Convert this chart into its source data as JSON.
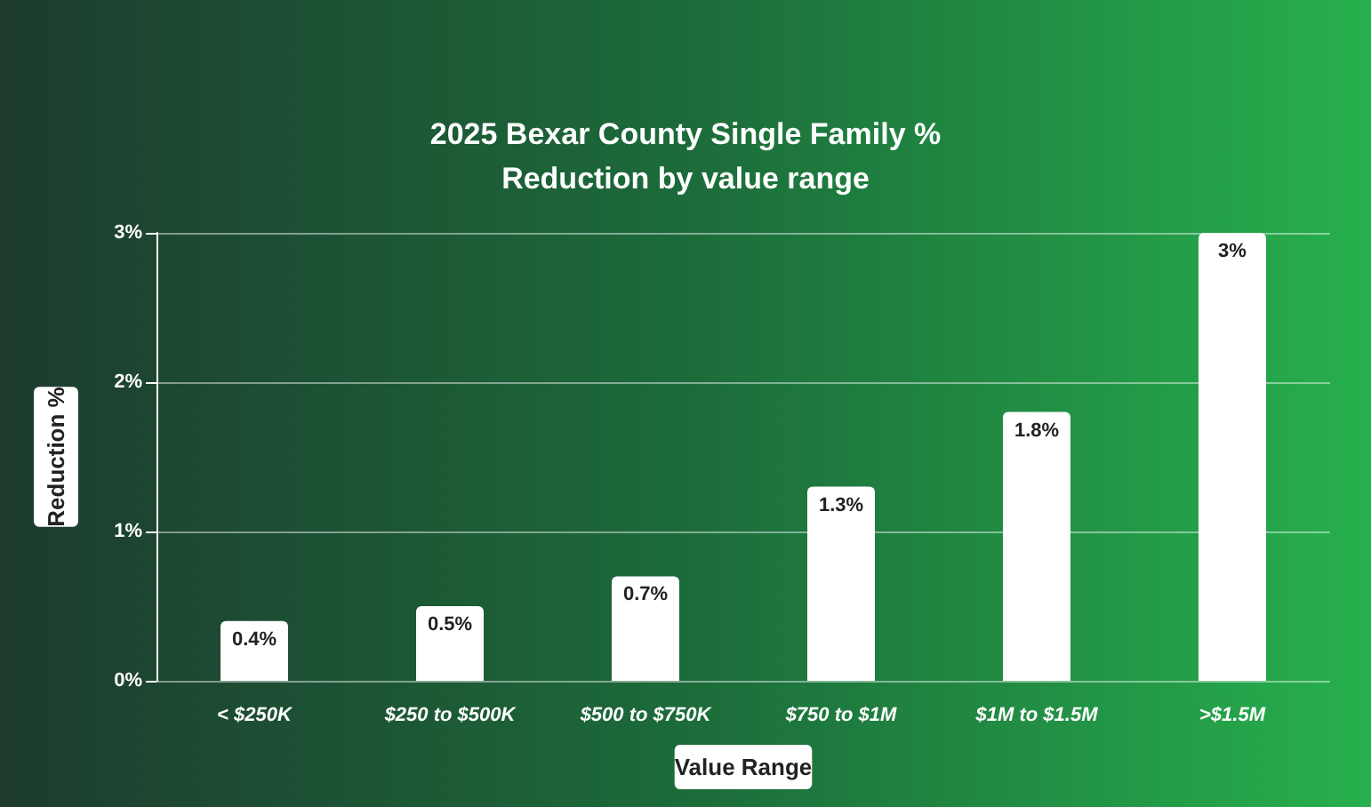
{
  "chart_data": {
    "type": "bar",
    "title": "2025 Bexar County Single Family %\nReduction by value range",
    "xlabel": "Value Range",
    "ylabel": "Reduction %",
    "categories": [
      "< $250K",
      "$250 to $500K",
      "$500 to $750K",
      "$750 to $1M",
      "$1M to $1.5M",
      ">$1.5M"
    ],
    "values": [
      0.4,
      0.5,
      0.7,
      1.3,
      1.8,
      3
    ],
    "color": "#ffffff",
    "value_labels": [
      "0.4%",
      "0.5%",
      "0.7%",
      "1.3%",
      "1.8%",
      "3%"
    ],
    "ylim": [
      0,
      3
    ],
    "yticks": [
      {
        "value": 0,
        "label": "0%"
      },
      {
        "value": 1,
        "label": "1%"
      },
      {
        "value": 2,
        "label": "2%"
      },
      {
        "value": 3,
        "label": "3%"
      }
    ],
    "grid": "y"
  }
}
